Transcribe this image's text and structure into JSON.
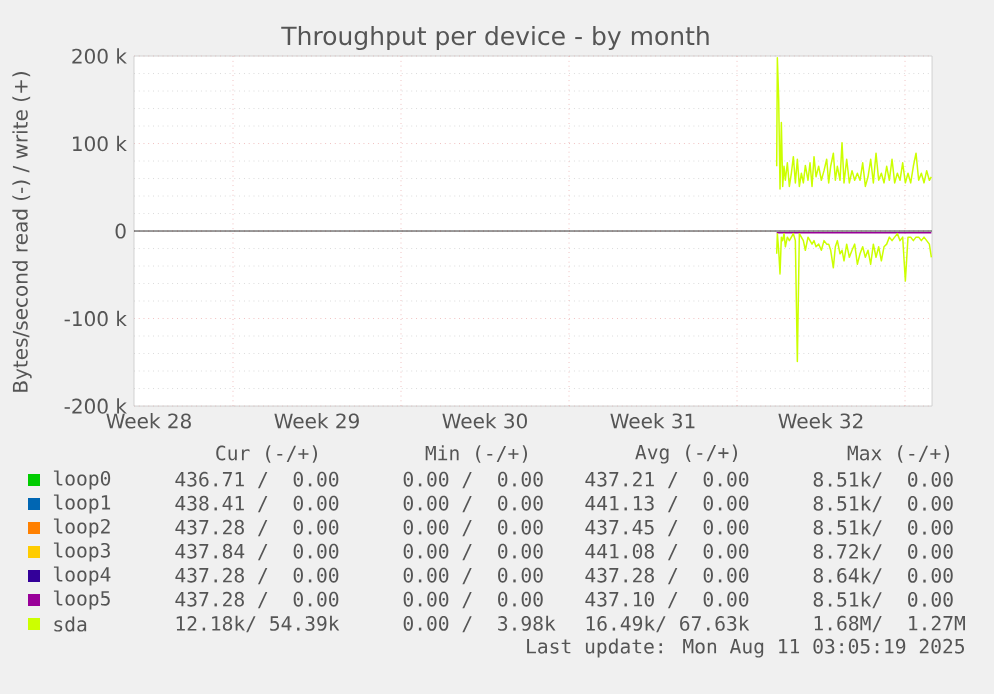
{
  "chart_data": {
    "type": "line",
    "title": "Throughput per device - by month",
    "ylabel": "Bytes/second read (-) / write (+)",
    "xlim": [
      "2025-07-08T21:00",
      "2025-08-11T03:00"
    ],
    "ylim": [
      -200000,
      200000
    ],
    "xticks": [
      {
        "value": "2025-07-09T12:00",
        "label": "Week 28"
      },
      {
        "value": "2025-07-16T12:00",
        "label": "Week 29"
      },
      {
        "value": "2025-07-23T12:00",
        "label": "Week 30"
      },
      {
        "value": "2025-07-30T12:00",
        "label": "Week 31"
      },
      {
        "value": "2025-08-06T12:00",
        "label": "Week 32"
      },
      {
        "value": "2025-07-13T00:00",
        "label": null
      },
      {
        "value": "2025-07-20T00:00",
        "label": null
      },
      {
        "value": "2025-07-27T00:00",
        "label": null
      },
      {
        "value": "2025-08-03T00:00",
        "label": null
      },
      {
        "value": "2025-08-10T00:00",
        "label": null
      }
    ],
    "yticks": [
      {
        "value": -200000,
        "label": "-200 k"
      },
      {
        "value": -100000,
        "label": "-100 k"
      },
      {
        "value": 0,
        "label": "0"
      },
      {
        "value": 100000,
        "label": "100 k"
      },
      {
        "value": 200000,
        "label": "200 k"
      }
    ],
    "grid": true,
    "legend": "bottom",
    "marker": "none",
    "line_style": "solid",
    "series": [
      {
        "name": "loop0",
        "color": "#00cc00"
      },
      {
        "name": "loop1",
        "color": "#0066b3"
      },
      {
        "name": "loop2",
        "color": "#ff8000"
      },
      {
        "name": "loop3",
        "color": "#ffcc00"
      },
      {
        "name": "loop4",
        "color": "#330099"
      },
      {
        "name": "loop5",
        "color": "#990099",
        "x": [
          "2025-08-04T15:40",
          "2025-08-11T02:20"
        ],
        "values": [
          -2000,
          -2000
        ]
      },
      {
        "name": "sda",
        "color": "#ccff00",
        "x": [
          "2025-08-04T15:40",
          "2025-08-04T16:20",
          "2025-08-04T17:40",
          "2025-08-04T19:00",
          "2025-08-04T20:20",
          "2025-08-04T21:40",
          "2025-08-04T23:00",
          "2025-08-05T00:20",
          "2025-08-05T02:20",
          "2025-08-05T04:20",
          "2025-08-05T06:20",
          "2025-08-05T08:20",
          "2025-08-05T10:20",
          "2025-08-05T12:20",
          "2025-08-05T14:20",
          "2025-08-05T16:20",
          "2025-08-05T18:20",
          "2025-08-05T20:20",
          "2025-08-05T23:00",
          "2025-08-06T01:00",
          "2025-08-06T03:00",
          "2025-08-06T05:00",
          "2025-08-06T07:00",
          "2025-08-06T09:40",
          "2025-08-06T12:20",
          "2025-08-06T15:00",
          "2025-08-06T17:40",
          "2025-08-06T19:40",
          "2025-08-06T21:40",
          "2025-08-07T00:20",
          "2025-08-07T02:20",
          "2025-08-07T04:20",
          "2025-08-07T07:00",
          "2025-08-07T09:00",
          "2025-08-07T11:00",
          "2025-08-07T13:40",
          "2025-08-07T16:20",
          "2025-08-07T19:00",
          "2025-08-07T21:40",
          "2025-08-08T00:20",
          "2025-08-08T03:00",
          "2025-08-08T05:40",
          "2025-08-08T08:20",
          "2025-08-08T11:00",
          "2025-08-08T13:40",
          "2025-08-08T16:20",
          "2025-08-08T19:00",
          "2025-08-08T21:40",
          "2025-08-09T00:20",
          "2025-08-09T03:00",
          "2025-08-09T05:40",
          "2025-08-09T08:20",
          "2025-08-09T11:00",
          "2025-08-09T13:40",
          "2025-08-09T16:20",
          "2025-08-09T19:00",
          "2025-08-09T21:40",
          "2025-08-10T00:20",
          "2025-08-10T03:00",
          "2025-08-10T05:40",
          "2025-08-10T08:20",
          "2025-08-10T11:00",
          "2025-08-10T13:40",
          "2025-08-10T16:20",
          "2025-08-10T19:00",
          "2025-08-10T21:40",
          "2025-08-11T00:20",
          "2025-08-11T02:20"
        ],
        "values": [
          74000,
          198000,
          151000,
          48000,
          124000,
          51000,
          74000,
          58000,
          78000,
          51000,
          66000,
          85000,
          55000,
          82000,
          51000,
          66000,
          55000,
          75000,
          58000,
          78000,
          51000,
          85000,
          62000,
          74000,
          58000,
          69000,
          82000,
          55000,
          74000,
          89000,
          58000,
          74000,
          58000,
          101000,
          55000,
          82000,
          55000,
          69000,
          58000,
          66000,
          58000,
          78000,
          51000,
          62000,
          82000,
          55000,
          89000,
          58000,
          66000,
          55000,
          74000,
          58000,
          82000,
          55000,
          66000,
          58000,
          78000,
          55000,
          66000,
          55000,
          74000,
          89000,
          58000,
          66000,
          55000,
          69000,
          58000,
          62000
        ]
      },
      {
        "color": "#ccff00",
        "x": [
          "2025-08-04T15:40",
          "2025-08-04T16:20",
          "2025-08-04T17:40",
          "2025-08-04T19:00",
          "2025-08-04T20:20",
          "2025-08-04T21:40",
          "2025-08-04T23:00",
          "2025-08-05T00:20",
          "2025-08-05T02:20",
          "2025-08-05T04:20",
          "2025-08-05T06:20",
          "2025-08-05T08:20",
          "2025-08-05T10:20",
          "2025-08-05T12:20",
          "2025-08-05T14:20",
          "2025-08-05T16:20",
          "2025-08-05T18:20",
          "2025-08-05T20:20",
          "2025-08-05T23:00",
          "2025-08-06T01:00",
          "2025-08-06T03:00",
          "2025-08-06T05:00",
          "2025-08-06T07:00",
          "2025-08-06T09:40",
          "2025-08-06T12:20",
          "2025-08-06T15:00",
          "2025-08-06T17:40",
          "2025-08-06T19:40",
          "2025-08-06T21:40",
          "2025-08-07T00:20",
          "2025-08-07T02:20",
          "2025-08-07T04:20",
          "2025-08-07T07:00",
          "2025-08-07T09:00",
          "2025-08-07T11:00",
          "2025-08-07T13:40",
          "2025-08-07T16:20",
          "2025-08-07T19:00",
          "2025-08-07T21:40",
          "2025-08-08T00:20",
          "2025-08-08T03:00",
          "2025-08-08T05:40",
          "2025-08-08T08:20",
          "2025-08-08T11:00",
          "2025-08-08T13:40",
          "2025-08-08T16:20",
          "2025-08-08T19:00",
          "2025-08-08T21:40",
          "2025-08-09T00:20",
          "2025-08-09T03:00",
          "2025-08-09T05:40",
          "2025-08-09T08:20",
          "2025-08-09T11:00",
          "2025-08-09T13:40",
          "2025-08-09T16:20",
          "2025-08-09T19:00",
          "2025-08-09T21:40",
          "2025-08-10T00:20",
          "2025-08-10T03:00",
          "2025-08-10T05:40",
          "2025-08-10T08:20",
          "2025-08-10T11:00",
          "2025-08-10T13:40",
          "2025-08-10T16:20",
          "2025-08-10T19:00",
          "2025-08-10T21:40",
          "2025-08-11T00:20",
          "2025-08-11T02:20"
        ],
        "values": [
          -26000,
          -3000,
          -22000,
          -49000,
          -7000,
          -11000,
          -3000,
          -18000,
          -7000,
          -11000,
          -7000,
          -3000,
          -11000,
          -149000,
          -3000,
          -7000,
          -11000,
          -22000,
          -7000,
          -11000,
          -15000,
          -11000,
          -18000,
          -15000,
          -22000,
          -11000,
          -15000,
          -15000,
          -22000,
          -42000,
          -18000,
          -11000,
          -26000,
          -22000,
          -34000,
          -15000,
          -30000,
          -22000,
          -15000,
          -38000,
          -26000,
          -18000,
          -30000,
          -22000,
          -38000,
          -15000,
          -30000,
          -18000,
          -34000,
          -18000,
          -15000,
          -7000,
          -11000,
          -7000,
          -3000,
          -11000,
          -7000,
          -57000,
          -7000,
          -7000,
          -11000,
          -7000,
          -7000,
          -11000,
          -7000,
          -11000,
          -15000,
          -30000
        ]
      }
    ],
    "annotations": [
      "Cur (-/+)",
      "Min (-/+)",
      "Avg (-/+)",
      "Max (-/+)",
      "436.71 /  0.00",
      "0.00 /  0.00",
      "437.21 /  0.00",
      "8.51k/  0.00",
      "438.41 /  0.00",
      "0.00 /  0.00",
      "441.13 /  0.00",
      "8.51k/  0.00",
      "437.28 /  0.00",
      "0.00 /  0.00",
      "437.45 /  0.00",
      "8.51k/  0.00",
      "437.84 /  0.00",
      "0.00 /  0.00",
      "441.08 /  0.00",
      "8.72k/  0.00",
      "437.28 /  0.00",
      "0.00 /  0.00",
      "437.28 /  0.00",
      "8.64k/  0.00",
      "437.28 /  0.00",
      "0.00 /  0.00",
      "437.10 /  0.00",
      "8.51k/  0.00",
      "12.18k/ 54.39k",
      "0.00 /  3.98k",
      "16.49k/ 67.63k",
      "1.68M/  1.27M",
      "Last update: Mon Aug 11 03:05:19 2025"
    ]
  }
}
